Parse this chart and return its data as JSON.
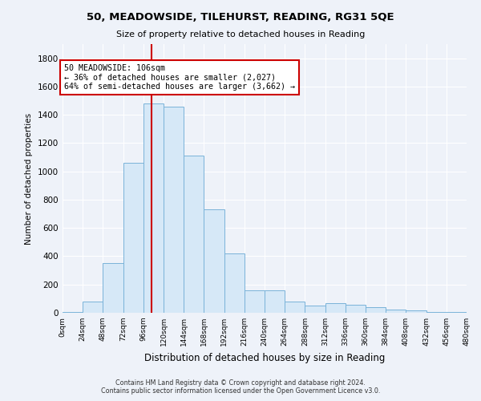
{
  "title": "50, MEADOWSIDE, TILEHURST, READING, RG31 5QE",
  "subtitle": "Size of property relative to detached houses in Reading",
  "xlabel": "Distribution of detached houses by size in Reading",
  "ylabel": "Number of detached properties",
  "bar_color": "#d6e8f7",
  "bar_edge_color": "#7ab3d9",
  "background_color": "#eef2f9",
  "grid_color": "#ffffff",
  "annotation_line_color": "#cc0000",
  "annotation_box_color": "#cc0000",
  "footer1": "Contains HM Land Registry data © Crown copyright and database right 2024.",
  "footer2": "Contains public sector information licensed under the Open Government Licence v3.0.",
  "annotation_line1": "50 MEADOWSIDE: 106sqm",
  "annotation_line2": "← 36% of detached houses are smaller (2,027)",
  "annotation_line3": "64% of semi-detached houses are larger (3,662) →",
  "property_size_sqm": 106,
  "bin_width": 24,
  "bins": [
    0,
    24,
    48,
    72,
    96,
    120,
    144,
    168,
    192,
    216,
    240,
    264,
    288,
    312,
    336,
    360,
    384,
    408,
    432,
    456,
    480
  ],
  "bin_labels": [
    "0sqm",
    "24sqm",
    "48sqm",
    "72sqm",
    "96sqm",
    "120sqm",
    "144sqm",
    "168sqm",
    "192sqm",
    "216sqm",
    "240sqm",
    "264sqm",
    "288sqm",
    "312sqm",
    "336sqm",
    "360sqm",
    "384sqm",
    "408sqm",
    "432sqm",
    "456sqm",
    "480sqm"
  ],
  "counts": [
    3,
    80,
    350,
    1060,
    1480,
    1460,
    1110,
    730,
    420,
    160,
    160,
    80,
    50,
    70,
    55,
    40,
    25,
    15,
    5,
    5,
    2
  ],
  "ylim": [
    0,
    1900
  ],
  "yticks": [
    0,
    200,
    400,
    600,
    800,
    1000,
    1200,
    1400,
    1600,
    1800
  ]
}
